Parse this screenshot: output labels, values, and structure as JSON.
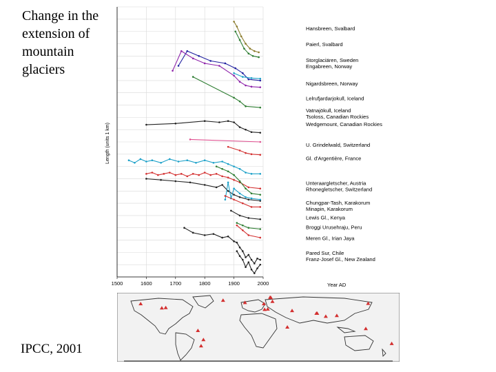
{
  "slide": {
    "title": "Change in the extension of mountain glaciers",
    "source": "IPCC, 2001"
  },
  "chart_data": {
    "type": "line",
    "title": "Change in the extension of mountain glaciers",
    "xlabel": "Year AD",
    "ylabel": "Length (units 1 km)",
    "xlim": [
      1500,
      2000
    ],
    "x_ticks": [
      "1500",
      "1600",
      "1700",
      "1800",
      "1900",
      "2000"
    ],
    "x_axis_label": "Year AD",
    "grid": true,
    "series": [
      {
        "name": "Hansbreen, Svalbard",
        "color": "#8a7a2a",
        "points": [
          [
            1900,
            9.8
          ],
          [
            1910,
            9.4
          ],
          [
            1925,
            8.6
          ],
          [
            1940,
            8.0
          ],
          [
            1955,
            7.6
          ],
          [
            1970,
            7.4
          ],
          [
            1985,
            7.3
          ]
        ]
      },
      {
        "name": "Paierl, Svalbard",
        "color": "#2e7d32",
        "points": [
          [
            1905,
            9.0
          ],
          [
            1920,
            8.3
          ],
          [
            1935,
            7.6
          ],
          [
            1950,
            7.2
          ],
          [
            1965,
            7.0
          ],
          [
            1985,
            6.9
          ]
        ]
      },
      {
        "name": "Storglaciären, Sweden",
        "color": "#2020a0",
        "points": [
          [
            1710,
            6.2
          ],
          [
            1740,
            7.4
          ],
          [
            1780,
            7.0
          ],
          [
            1820,
            6.6
          ],
          [
            1870,
            6.4
          ],
          [
            1905,
            6.0
          ],
          [
            1930,
            5.6
          ],
          [
            1950,
            5.1
          ],
          [
            1990,
            5.0
          ]
        ]
      },
      {
        "name": "Engabreen, Norway",
        "color": "#1ba0c8",
        "points": [
          [
            1900,
            5.6
          ],
          [
            1930,
            5.3
          ],
          [
            1960,
            5.2
          ],
          [
            1990,
            5.15
          ]
        ]
      },
      {
        "name": "Nigardsbreen, Norway",
        "color": "#8e24aa",
        "points": [
          [
            1690,
            5.8
          ],
          [
            1720,
            7.4
          ],
          [
            1760,
            6.8
          ],
          [
            1800,
            6.4
          ],
          [
            1850,
            6.2
          ],
          [
            1900,
            5.4
          ],
          [
            1920,
            4.9
          ],
          [
            1940,
            4.6
          ],
          [
            1960,
            4.5
          ],
          [
            1990,
            4.45
          ]
        ]
      },
      {
        "name": "Lelrufjardarjokull, Iceland",
        "color": "#2e7d32",
        "points": [
          [
            1760,
            5.3
          ],
          [
            1900,
            3.6
          ],
          [
            1920,
            3.3
          ],
          [
            1940,
            2.9
          ],
          [
            1990,
            2.8
          ]
        ]
      },
      {
        "name": "Vatnajökull, Iceland",
        "color": "#222222",
        "points": [
          [
            1600,
            1.4
          ],
          [
            1700,
            1.5
          ],
          [
            1800,
            1.7
          ],
          [
            1850,
            1.6
          ],
          [
            1880,
            1.7
          ],
          [
            1900,
            1.6
          ],
          [
            1920,
            1.2
          ],
          [
            1940,
            1.0
          ],
          [
            1960,
            0.8
          ],
          [
            1990,
            0.75
          ]
        ]
      },
      {
        "name": "Tsoloss, Canadian Rockies",
        "color": "#e05090",
        "points": [
          [
            1750,
            0.2
          ],
          [
            1990,
            0.0
          ]
        ]
      },
      {
        "name": "Wedgemount, Canadian Rockies",
        "color": "#d32f2f",
        "points": [
          [
            1880,
            -0.4
          ],
          [
            1920,
            -0.7
          ],
          [
            1940,
            -0.9
          ],
          [
            1960,
            -1.0
          ],
          [
            1990,
            -1.05
          ]
        ]
      },
      {
        "name": "U. Grindelwald, Switzerland",
        "color": "#1ba0c8",
        "points": [
          [
            1540,
            -1.5
          ],
          [
            1560,
            -1.7
          ],
          [
            1580,
            -1.4
          ],
          [
            1600,
            -1.6
          ],
          [
            1620,
            -1.5
          ],
          [
            1650,
            -1.7
          ],
          [
            1680,
            -1.4
          ],
          [
            1710,
            -1.6
          ],
          [
            1740,
            -1.5
          ],
          [
            1770,
            -1.7
          ],
          [
            1800,
            -1.5
          ],
          [
            1830,
            -1.7
          ],
          [
            1860,
            -1.6
          ],
          [
            1880,
            -1.8
          ],
          [
            1900,
            -2.0
          ],
          [
            1920,
            -2.2
          ],
          [
            1940,
            -2.5
          ],
          [
            1960,
            -2.6
          ],
          [
            1990,
            -2.6
          ]
        ]
      },
      {
        "name": "Gl. d'Argentière, France",
        "color": "#d32f2f",
        "points": [
          [
            1600,
            -2.6
          ],
          [
            1620,
            -2.5
          ],
          [
            1640,
            -2.7
          ],
          [
            1660,
            -2.6
          ],
          [
            1680,
            -2.5
          ],
          [
            1700,
            -2.7
          ],
          [
            1720,
            -2.6
          ],
          [
            1740,
            -2.8
          ],
          [
            1760,
            -2.6
          ],
          [
            1780,
            -2.7
          ],
          [
            1800,
            -2.5
          ],
          [
            1820,
            -2.7
          ],
          [
            1840,
            -2.6
          ],
          [
            1860,
            -2.8
          ],
          [
            1880,
            -2.9
          ],
          [
            1900,
            -3.1
          ],
          [
            1920,
            -3.3
          ],
          [
            1950,
            -3.7
          ],
          [
            1990,
            -3.8
          ]
        ]
      },
      {
        "name": "Unteraargletscher, Austria",
        "color": "#2e7d32",
        "points": [
          [
            1840,
            -2.0
          ],
          [
            1860,
            -2.2
          ],
          [
            1880,
            -2.4
          ],
          [
            1900,
            -2.7
          ],
          [
            1920,
            -3.2
          ],
          [
            1940,
            -3.8
          ],
          [
            1960,
            -4.2
          ],
          [
            1990,
            -4.3
          ]
        ]
      },
      {
        "name": "Rhonegletscher, Switzerland",
        "color": "#222222",
        "points": [
          [
            1600,
            -3.0
          ],
          [
            1650,
            -3.1
          ],
          [
            1700,
            -3.2
          ],
          [
            1750,
            -3.3
          ],
          [
            1800,
            -3.5
          ],
          [
            1840,
            -3.7
          ],
          [
            1860,
            -3.5
          ],
          [
            1880,
            -4.0
          ],
          [
            1900,
            -4.3
          ],
          [
            1920,
            -4.5
          ],
          [
            1950,
            -4.7
          ],
          [
            1990,
            -4.8
          ]
        ]
      },
      {
        "name": "Chungpar-Tash, Karakorum",
        "color": "#1ba0c8",
        "points": [
          [
            1870,
            -4.7
          ],
          [
            1880,
            -3.3
          ],
          [
            1890,
            -4.6
          ],
          [
            1900,
            -3.8
          ],
          [
            1920,
            -4.2
          ],
          [
            1940,
            -4.5
          ],
          [
            1960,
            -4.6
          ],
          [
            1990,
            -4.7
          ]
        ]
      },
      {
        "name": "Minapin, Karakorum",
        "color": "#d32f2f",
        "points": [
          [
            1870,
            -4.4
          ],
          [
            1900,
            -4.7
          ],
          [
            1930,
            -5.0
          ],
          [
            1960,
            -5.3
          ],
          [
            1990,
            -5.3
          ]
        ]
      },
      {
        "name": "Lewis Gl., Kenya",
        "color": "#222222",
        "points": [
          [
            1890,
            -5.6
          ],
          [
            1920,
            -6.0
          ],
          [
            1950,
            -6.2
          ],
          [
            1990,
            -6.3
          ]
        ]
      },
      {
        "name": "Broggi Urusehraju, Peru",
        "color": "#2e7d32",
        "points": [
          [
            1910,
            -6.6
          ],
          [
            1930,
            -6.8
          ],
          [
            1950,
            -7.0
          ],
          [
            1990,
            -7.1
          ]
        ]
      },
      {
        "name": "Meren Gl., Irian Jaya",
        "color": "#d32f2f",
        "points": [
          [
            1910,
            -6.8
          ],
          [
            1930,
            -7.2
          ],
          [
            1950,
            -7.6
          ],
          [
            1990,
            -7.8
          ]
        ]
      },
      {
        "name": "Pared Sur, Chile",
        "color": "#222222",
        "points": [
          [
            1730,
            -7.0
          ],
          [
            1760,
            -7.4
          ],
          [
            1800,
            -7.6
          ],
          [
            1830,
            -7.5
          ],
          [
            1860,
            -7.8
          ],
          [
            1880,
            -7.7
          ],
          [
            1900,
            -8.1
          ],
          [
            1910,
            -8.2
          ],
          [
            1920,
            -8.6
          ],
          [
            1930,
            -8.9
          ],
          [
            1940,
            -9.4
          ],
          [
            1950,
            -9.2
          ],
          [
            1960,
            -9.6
          ],
          [
            1970,
            -9.9
          ],
          [
            1980,
            -9.5
          ],
          [
            1990,
            -9.6
          ]
        ]
      },
      {
        "name": "Franz-Josef Gl., New Zealand",
        "color": "#222222",
        "points": [
          [
            1910,
            -8.9
          ],
          [
            1920,
            -9.3
          ],
          [
            1930,
            -9.6
          ],
          [
            1940,
            -10.2
          ],
          [
            1950,
            -9.8
          ],
          [
            1960,
            -10.4
          ],
          [
            1970,
            -10.7
          ],
          [
            1980,
            -10.3
          ],
          [
            1990,
            -10.0
          ]
        ]
      }
    ],
    "labels": [
      {
        "text": "Hansbreen, Svalbard",
        "y": 9.1
      },
      {
        "text": "Paierl, Svalbard",
        "y": 7.8
      },
      {
        "text": "Storglaciären, Sweden",
        "y": 6.5
      },
      {
        "text": "Engabreen, Norway",
        "y": 6.0
      },
      {
        "text": "Nigardsbreen, Norway",
        "y": 4.6
      },
      {
        "text": "Lelrufjardarjokull, Iceland",
        "y": 3.4
      },
      {
        "text": "Vatnajökull, Iceland",
        "y": 2.4
      },
      {
        "text": "Tsoloss, Canadian Rockies",
        "y": 1.9
      },
      {
        "text": "Wedgemount, Canadian Rockies",
        "y": 1.3
      },
      {
        "text": "U. Grindelwald, Switzerland",
        "y": -0.4
      },
      {
        "text": "Gl. d'Argentière, France",
        "y": -1.5
      },
      {
        "text": "Unteraargletscher, Austria",
        "y": -3.5
      },
      {
        "text": "Rhonegletscher, Switzerland",
        "y": -4.0
      },
      {
        "text": "Chungpar-Tash, Karakorum",
        "y": -5.1
      },
      {
        "text": "Minapin, Karakorum",
        "y": -5.6
      },
      {
        "text": "Lewis Gl., Kenya",
        "y": -6.3
      },
      {
        "text": "Broggi Urusehraju, Peru",
        "y": -7.1
      },
      {
        "text": "Meren Gl., Irian Jaya",
        "y": -8.0
      },
      {
        "text": "Pared Sur, Chile",
        "y": -9.2
      },
      {
        "text": "Franz-Josef Gl., New Zealand",
        "y": -9.7
      }
    ],
    "ylim": [
      -11,
      11
    ]
  },
  "map": {
    "glacier_locations": [
      {
        "lon": 16,
        "lat": 77
      },
      {
        "lon": 15,
        "lat": 78
      },
      {
        "lon": 18,
        "lat": 67
      },
      {
        "lon": 7,
        "lat": 61
      },
      {
        "lon": -17,
        "lat": 64
      },
      {
        "lon": -118,
        "lat": 51
      },
      {
        "lon": -123,
        "lat": 50
      },
      {
        "lon": 8,
        "lat": 46
      },
      {
        "lon": 12,
        "lat": 47
      },
      {
        "lon": 75,
        "lat": 36
      },
      {
        "lon": 74,
        "lat": 36
      },
      {
        "lon": 37,
        "lat": 0
      },
      {
        "lon": -77,
        "lat": -9
      },
      {
        "lon": 137,
        "lat": -4
      },
      {
        "lon": -73,
        "lat": -49
      },
      {
        "lon": 170,
        "lat": -43
      },
      {
        "lon": 86,
        "lat": 28
      },
      {
        "lon": 140,
        "lat": 62
      },
      {
        "lon": -150,
        "lat": 61
      },
      {
        "lon": -45,
        "lat": 70
      },
      {
        "lon": 43,
        "lat": 43
      },
      {
        "lon": 100,
        "lat": 30
      },
      {
        "lon": -70,
        "lat": -33
      }
    ]
  }
}
